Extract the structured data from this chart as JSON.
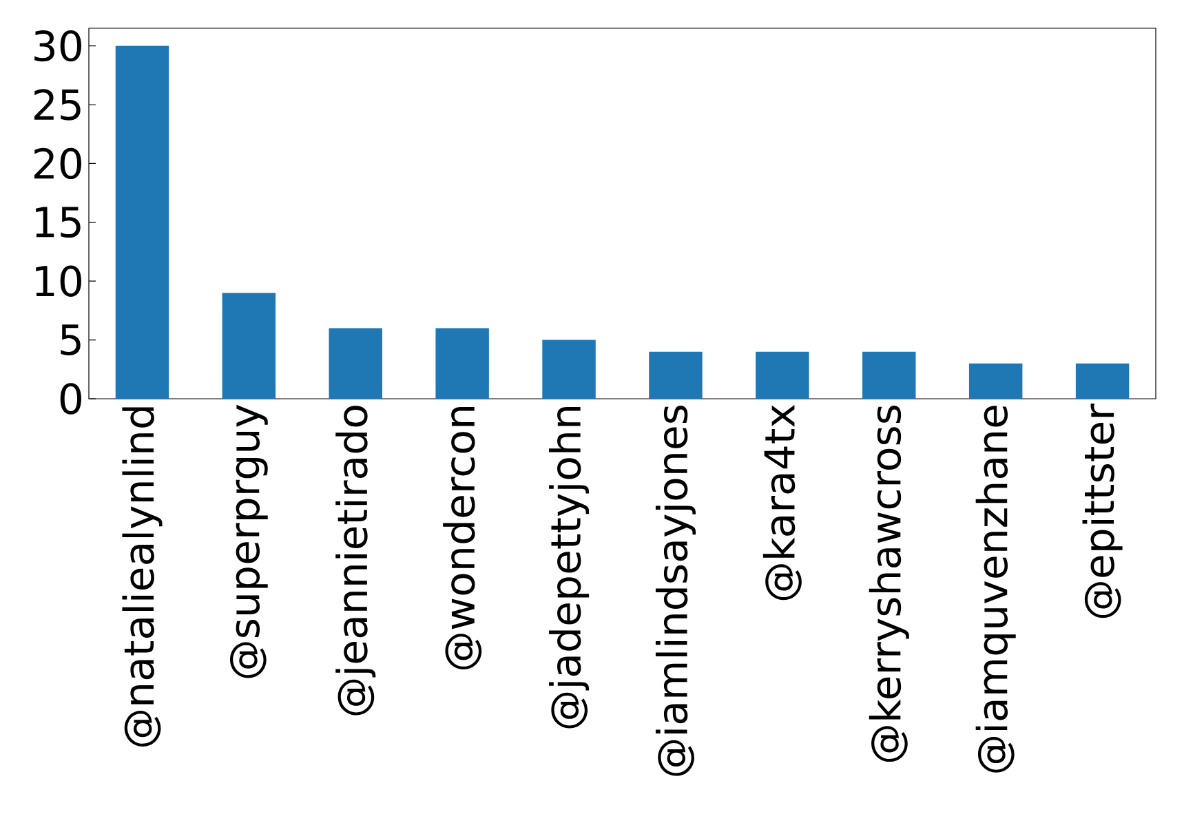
{
  "chart_data": {
    "type": "bar",
    "categories": [
      "@nataliealynlind",
      "@superprguy",
      "@jeannietirado",
      "@wondercon",
      "@jadepettyjohn",
      "@iamlindsayjones",
      "@kara4tx",
      "@kerryshawcross",
      "@iamquvenzhane",
      "@epittster"
    ],
    "values": [
      30,
      9,
      6,
      6,
      5,
      4,
      4,
      4,
      3,
      3
    ],
    "color": "#1f77b4",
    "ylim": [
      0,
      31.5
    ],
    "yticks": [
      0,
      5,
      10,
      15,
      20,
      25,
      30
    ]
  }
}
